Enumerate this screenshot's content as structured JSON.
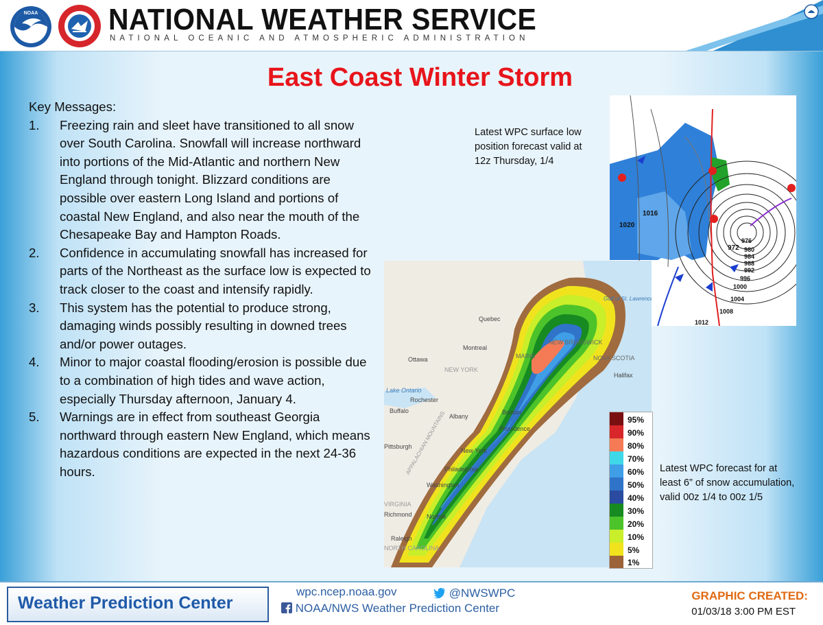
{
  "header": {
    "title": "NATIONAL WEATHER SERVICE",
    "subtitle": "NATIONAL OCEANIC AND ATMOSPHERIC ADMINISTRATION",
    "noaa_logo_text": "NOAA",
    "nws_logo_text": "NATIONAL WEATHER SERVICE"
  },
  "main": {
    "title": "East Coast Winter Storm",
    "key_messages_heading": "Key Messages:",
    "messages": [
      {
        "num": "1.",
        "text": "Freezing rain and sleet have transitioned to all snow over South Carolina. Snowfall will increase northward into portions of the Mid-Atlantic and northern New England through tonight. Blizzard conditions are possible over eastern Long Island and portions of coastal New England, and also near the mouth of the Chesapeake Bay and Hampton Roads."
      },
      {
        "num": "2.",
        "text": "Confidence in accumulating snowfall has increased for parts of the Northeast as the surface low is expected to track closer to the coast and intensify rapidly."
      },
      {
        "num": "3.",
        "text": "This system has the potential to produce strong, damaging winds possibly resulting in downed trees and/or power outages."
      },
      {
        "num": "4.",
        "text": "Minor to major coastal flooding/erosion is possible due to a combination of high tides and wave action, especially Thursday afternoon, January 4."
      },
      {
        "num": "5.",
        "text": "Warnings are in effect from southeast Georgia northward through eastern New England, which means hazardous conditions are expected in the next 24-36 hours."
      }
    ],
    "surface_caption": "Latest WPC surface low position forecast valid at 12z Thursday, 1/4",
    "snow_caption": "Latest WPC forecast for at least 6” of snow accumulation, valid 00z 1/4 to 00z 1/5"
  },
  "surface_map": {
    "isobar_labels": [
      "1016",
      "1020",
      "972",
      "976",
      "980",
      "984",
      "988",
      "992",
      "996",
      "1000",
      "1004",
      "1008",
      "1012"
    ]
  },
  "snow_map": {
    "place_labels": [
      "Quebec",
      "Montreal",
      "Ottawa",
      "Lake Ontario",
      "Rochester",
      "Buffalo",
      "Albany",
      "Boston",
      "Providence",
      "New York",
      "Philadelphia",
      "Washington",
      "Norfolk",
      "Richmond",
      "Raleigh",
      "MAINE",
      "NEW BRUNSWICK",
      "NOVA SCOTIA",
      "Halifax",
      "Gulf of St. Lawrence",
      "NEW YORK",
      "APPALACHIAN MOUNTAINS",
      "VIRGINIA",
      "Pittsburgh",
      "NORTH CAROLINA"
    ],
    "legend": [
      {
        "label": "95%",
        "color": "#7a0f12"
      },
      {
        "label": "90%",
        "color": "#d9262a"
      },
      {
        "label": "80%",
        "color": "#f47b56"
      },
      {
        "label": "70%",
        "color": "#3fd8e8"
      },
      {
        "label": "60%",
        "color": "#3f9ee6"
      },
      {
        "label": "50%",
        "color": "#2f74c9"
      },
      {
        "label": "40%",
        "color": "#2a4b9f"
      },
      {
        "label": "30%",
        "color": "#178a22"
      },
      {
        "label": "20%",
        "color": "#4cc32a"
      },
      {
        "label": "10%",
        "color": "#c9ee2a"
      },
      {
        "label": "5%",
        "color": "#f0e31e"
      },
      {
        "label": "1%",
        "color": "#9c6238"
      }
    ]
  },
  "footer": {
    "wpc_label": "Weather Prediction Center",
    "website": "wpc.ncep.noaa.gov",
    "twitter": "@NWSWPC",
    "facebook": "NOAA/NWS Weather Prediction Center",
    "created_label": "GRAPHIC CREATED:",
    "created_date": "01/03/18 3:00 PM EST"
  }
}
